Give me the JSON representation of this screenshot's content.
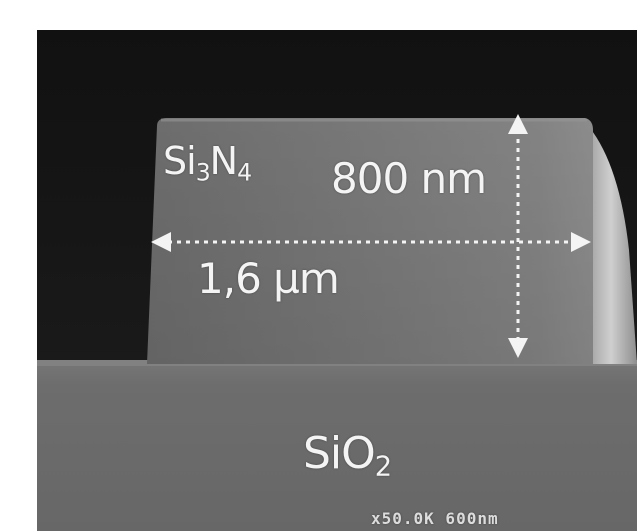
{
  "labels": {
    "material": {
      "main": "Si",
      "sub1": "3",
      "mid": "N",
      "sub2": "4"
    },
    "height": "800 nm",
    "width": "1,6 µm",
    "substrate": {
      "main": "SiO",
      "sub": "2"
    },
    "scale_bar": "x50.0K   600nm"
  },
  "colors": {
    "background": "#141414",
    "waveguide": "#7a7a7a",
    "substrate": "#6e6e6e",
    "annotation": "#f4f4f4"
  }
}
